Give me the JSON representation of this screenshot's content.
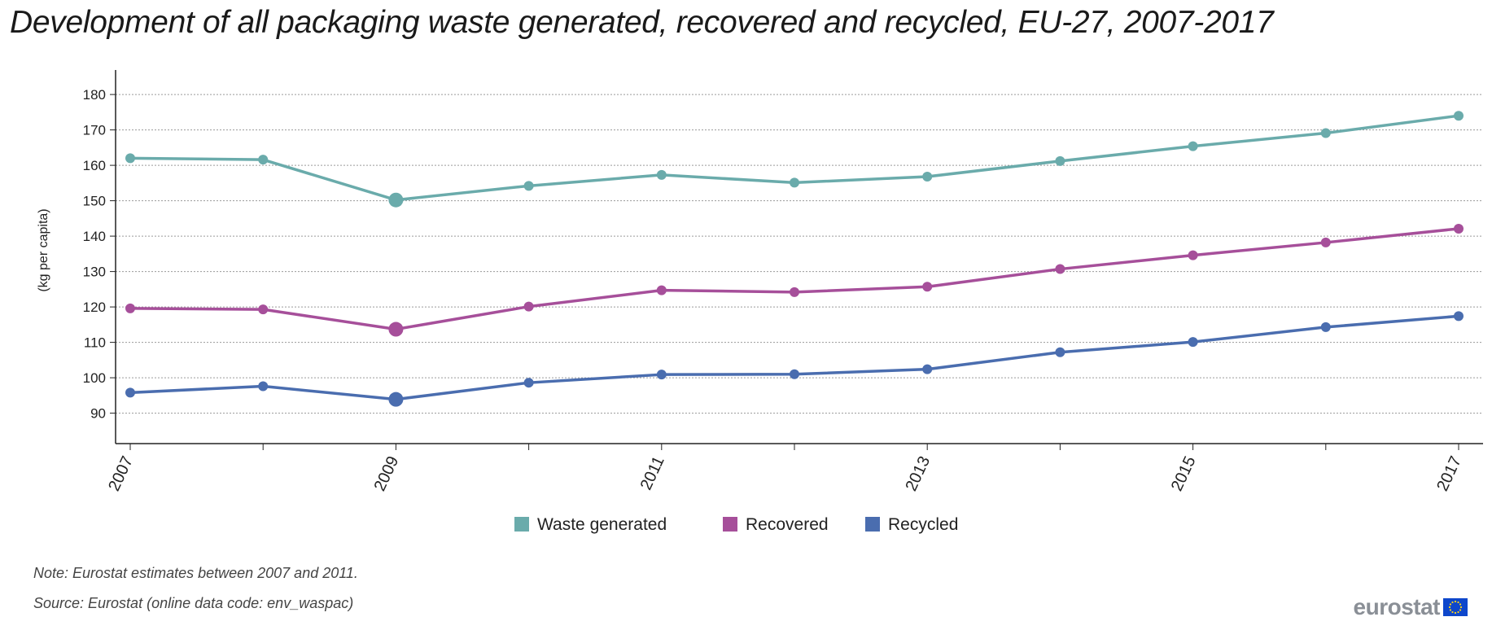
{
  "chart_data": {
    "type": "line",
    "title": "Development of all packaging waste generated, recovered and recycled, EU-27, 2007-2017",
    "ylabel": "(kg per capita)",
    "xlabel": "",
    "x": [
      2007,
      2008,
      2009,
      2010,
      2011,
      2012,
      2013,
      2014,
      2015,
      2016,
      2017
    ],
    "x_tick_labels": [
      "2007",
      "2009",
      "2011",
      "2013",
      "2015",
      "2017"
    ],
    "y_ticks": [
      90,
      100,
      110,
      120,
      130,
      140,
      150,
      160,
      170,
      180
    ],
    "ylim": [
      86,
      186
    ],
    "grid": true,
    "legend_position": "bottom",
    "highlight_x": 2009,
    "series": [
      {
        "name": "Waste generated",
        "color": "#6aabab",
        "values": [
          162.0,
          161.6,
          150.2,
          154.2,
          157.3,
          155.1,
          156.8,
          161.2,
          165.4,
          169.1,
          174.0
        ]
      },
      {
        "name": "Recovered",
        "color": "#a64f9a",
        "values": [
          119.6,
          119.3,
          113.7,
          120.1,
          124.7,
          124.2,
          125.7,
          130.7,
          134.6,
          138.2,
          142.1
        ]
      },
      {
        "name": "Recycled",
        "color": "#4a6daf",
        "values": [
          95.8,
          97.6,
          93.9,
          98.6,
          100.9,
          101.0,
          102.4,
          107.2,
          110.1,
          114.3,
          117.4
        ]
      }
    ]
  },
  "footnotes": {
    "note": "Note: Eurostat estimates between 2007 and 2011.",
    "source": "Source: Eurostat (online data code: env_waspac)"
  },
  "logo": {
    "text": "eurostat",
    "flag_color": "#0e47cb",
    "star_color": "#ffd617",
    "text_color": "#8a8f96"
  }
}
